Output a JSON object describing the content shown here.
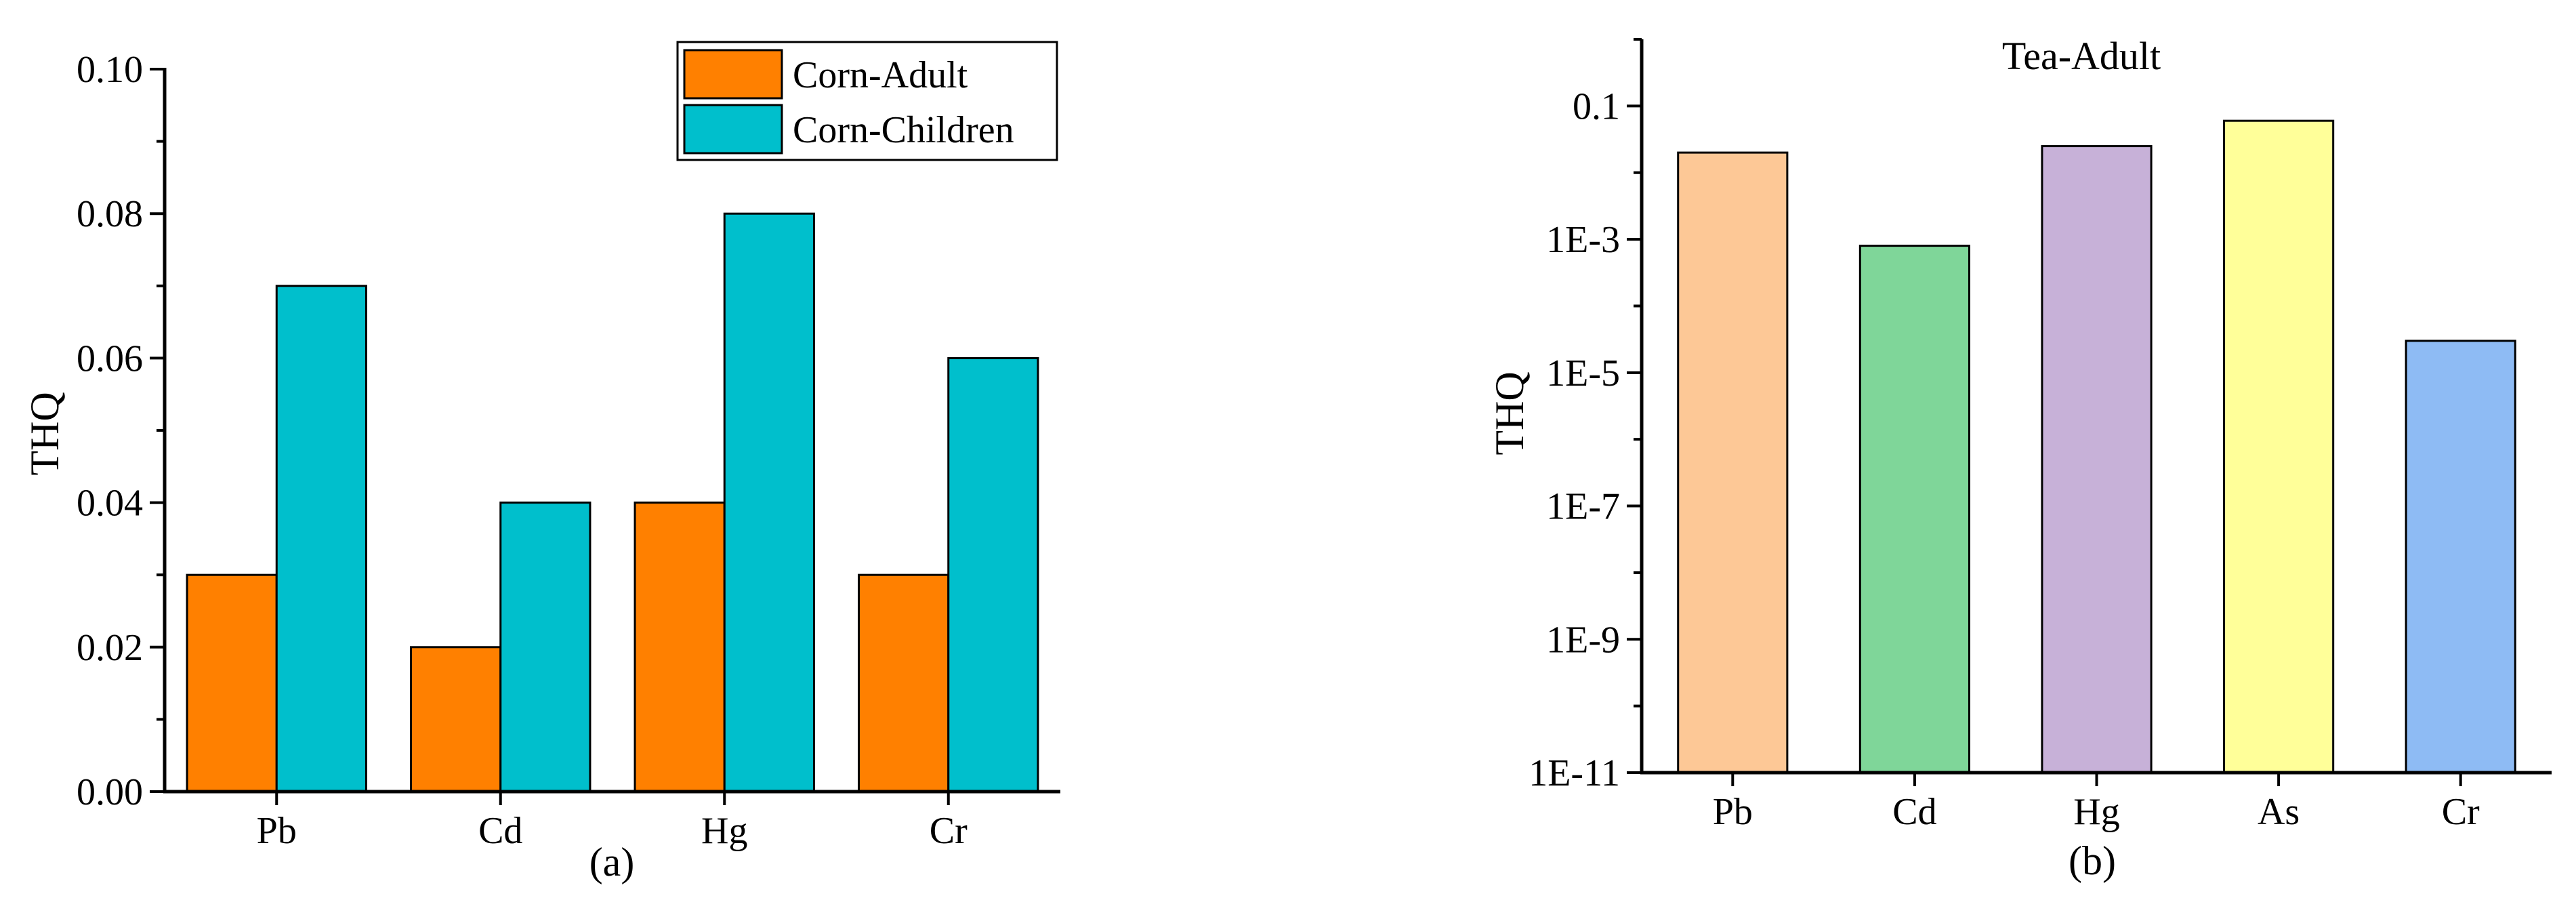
{
  "chart_data": [
    {
      "type": "bar",
      "panel_label": "(a)",
      "title": "",
      "xlabel": "",
      "ylabel": "THQ",
      "categories": [
        "Pb",
        "Cd",
        "Hg",
        "Cr"
      ],
      "ylim": [
        0,
        0.1
      ],
      "y_ticks": [
        0,
        0.02,
        0.04,
        0.06,
        0.08,
        0.1
      ],
      "y_tick_labels": [
        "0.00",
        "0.02",
        "0.04",
        "0.06",
        "0.08",
        "0.10"
      ],
      "legend_position": "top-right",
      "series": [
        {
          "name": "Corn-Adult",
          "color": "#FF8000",
          "values": [
            0.03,
            0.02,
            0.04,
            0.03
          ]
        },
        {
          "name": "Corn-Children",
          "color": "#00BFCC",
          "values": [
            0.07,
            0.04,
            0.08,
            0.06
          ]
        }
      ]
    },
    {
      "type": "bar",
      "panel_label": "(b)",
      "title": "Tea-Adult",
      "xlabel": "",
      "ylabel": "THQ",
      "y_scale": "log",
      "categories": [
        "Pb",
        "Cd",
        "As",
        "Hg",
        "Cr"
      ],
      "categories_display": [
        "Pb",
        "Cd",
        "Hg",
        "As",
        "Cr"
      ],
      "values": [
        0.02,
        0.0008,
        0.06,
        0.025,
        3e-05
      ],
      "colors": [
        "#FDC896",
        "#7FD699",
        "#C7B1D8",
        "#FFFF99",
        "#8EBBF4"
      ],
      "ylim": [
        1e-11,
        1
      ],
      "y_ticks": [
        1e-11,
        1e-09,
        1e-07,
        1e-05,
        0.001,
        0.1
      ],
      "y_tick_labels": [
        "1E-11",
        "1E-9",
        "1E-7",
        "1E-5",
        "1E-3",
        "0.1"
      ]
    }
  ]
}
